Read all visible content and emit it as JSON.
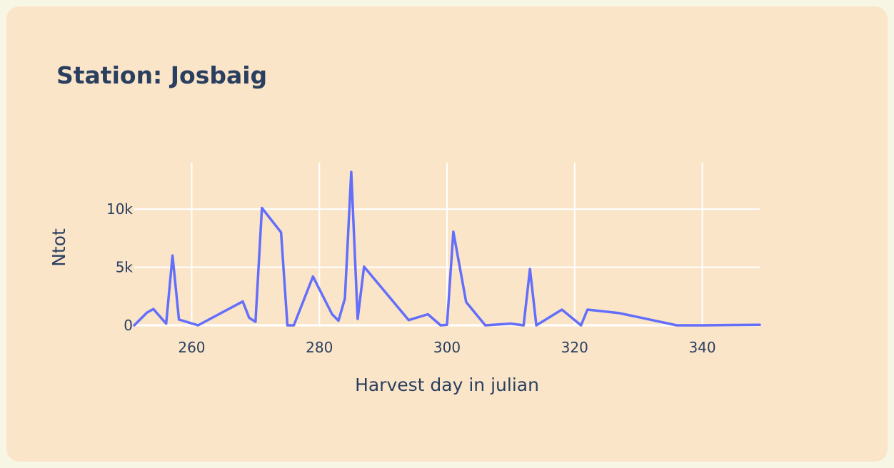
{
  "chart_data": {
    "type": "line",
    "title": "Station: Josbaig",
    "xlabel": "Harvest day in julian",
    "ylabel": "Ntot",
    "xlim": [
      251,
      349
    ],
    "ylim": [
      0,
      14000
    ],
    "x_ticks": [
      260,
      280,
      300,
      320,
      340
    ],
    "x_tick_labels": [
      "260",
      "280",
      "300",
      "320",
      "340"
    ],
    "y_ticks": [
      0,
      5000,
      10000
    ],
    "y_tick_labels": [
      "0",
      "5k",
      "10k"
    ],
    "grid": true,
    "legend": "none",
    "series": [
      {
        "color": "#636efa",
        "x": [
          251,
          253,
          254,
          256,
          257,
          258,
          261,
          268,
          269,
          270,
          271,
          274,
          275,
          276,
          279,
          282,
          283,
          284,
          285,
          286,
          287,
          294,
          297,
          299,
          300,
          301,
          303,
          306,
          310,
          312,
          313,
          314,
          318,
          321,
          322,
          327,
          336,
          340,
          349
        ],
        "y": [
          0,
          1100,
          1400,
          150,
          6000,
          500,
          0,
          2050,
          650,
          300,
          10100,
          8000,
          0,
          0,
          4200,
          950,
          400,
          2300,
          13200,
          550,
          5050,
          450,
          950,
          0,
          50,
          8050,
          2000,
          0,
          150,
          0,
          4850,
          0,
          1350,
          0,
          1350,
          1050,
          0,
          0,
          50
        ]
      }
    ]
  }
}
